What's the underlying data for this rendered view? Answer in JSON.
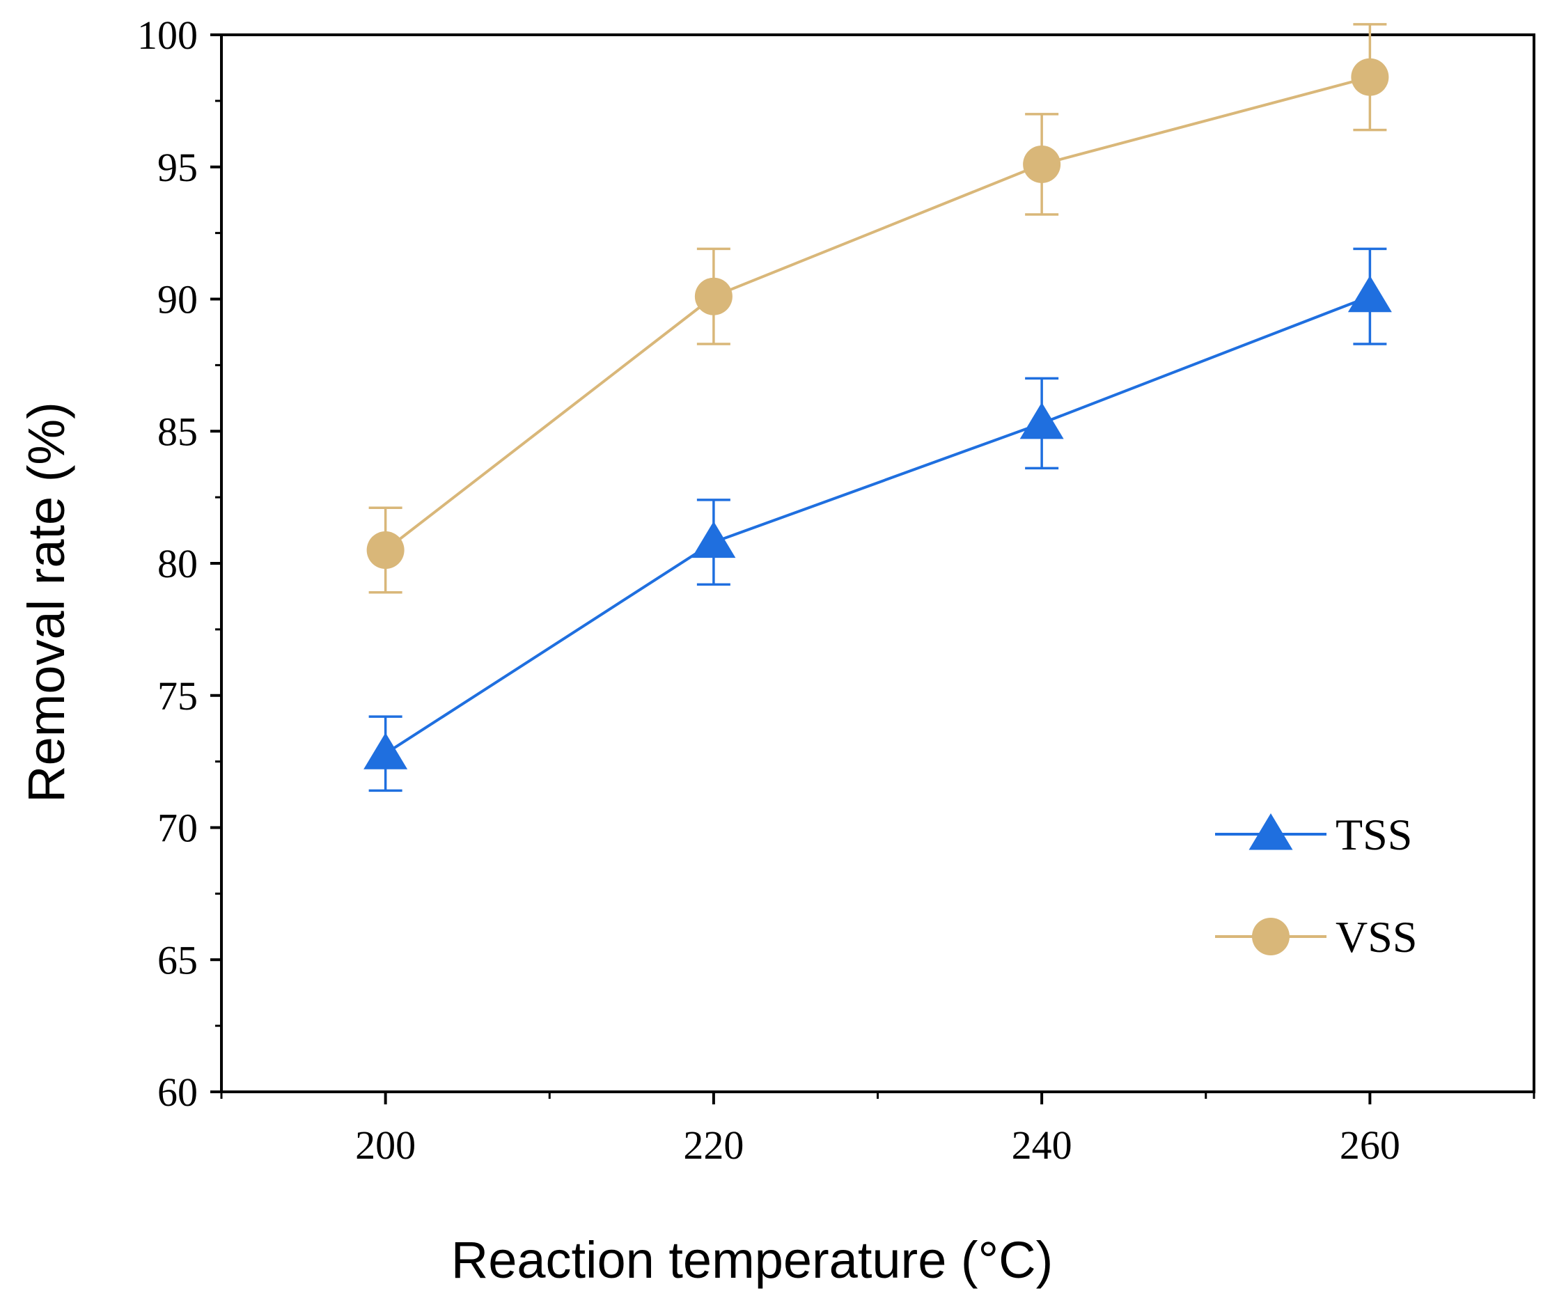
{
  "chart_data": {
    "type": "line",
    "title": "",
    "xlabel": "Reaction temperature (°C)",
    "ylabel": "Removal rate (%)",
    "xlim": [
      190,
      270
    ],
    "ylim": [
      60,
      100
    ],
    "xticks": [
      200,
      220,
      240,
      260
    ],
    "xtick_labels": [
      "200",
      "220",
      "240",
      "260"
    ],
    "yticks": [
      60,
      65,
      70,
      75,
      80,
      85,
      90,
      95,
      100
    ],
    "ytick_labels": [
      "60",
      "65",
      "70",
      "75",
      "80",
      "85",
      "90",
      "95",
      "100"
    ],
    "grid": false,
    "legend_position": "lower-right",
    "series": [
      {
        "name": "TSS",
        "marker": "triangle",
        "color": "#1f6fdf",
        "x": [
          200,
          220,
          240,
          260
        ],
        "y": [
          72.8,
          80.8,
          85.3,
          90.1
        ],
        "error": [
          1.4,
          1.6,
          1.7,
          1.8
        ]
      },
      {
        "name": "VSS",
        "marker": "circle",
        "color": "#d9b779",
        "x": [
          200,
          220,
          240,
          260
        ],
        "y": [
          80.5,
          90.1,
          95.1,
          98.4
        ],
        "error": [
          1.6,
          1.8,
          1.9,
          2.0
        ]
      }
    ]
  }
}
